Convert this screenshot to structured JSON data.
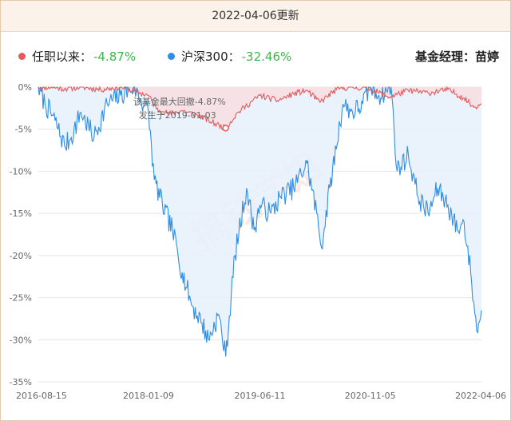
{
  "header": {
    "title": "2022-04-06更新"
  },
  "legend": {
    "fund_label": "任职以来：",
    "fund_value": "-4.87%",
    "index_label": "沪深300：",
    "index_value": "-32.46%",
    "manager": "基金经理：苗婷"
  },
  "annotation": {
    "line1": "该基金最大回撤-4.87%",
    "line2": "发生于2019-01-03"
  },
  "watermark": "搞钱学姐",
  "colors": {
    "fund": "#e8595c",
    "index": "#2f8ee3",
    "value_green": "#3fb64b",
    "header_bg": "#fbf2e9",
    "border": "#e6c8ad"
  },
  "chart_data": {
    "type": "area",
    "title": "",
    "xlabel": "",
    "ylabel": "",
    "ylim": [
      -35,
      0
    ],
    "y_ticks": [
      "0%",
      "-5%",
      "-10%",
      "-15%",
      "-20%",
      "-25%",
      "-30%",
      "-35%"
    ],
    "x_ticks": [
      "2016-08-15",
      "2018-01-09",
      "2019-06-11",
      "2020-11-05",
      "2022-04-06"
    ],
    "x_range": [
      "2016-08-15",
      "2022-04-06"
    ],
    "grid": true,
    "series": [
      {
        "name": "任职以来",
        "x": [
          "2016-08-15",
          "2016-10-15",
          "2016-12-15",
          "2017-03-01",
          "2017-06-01",
          "2017-09-01",
          "2017-11-15",
          "2018-01-09",
          "2018-02-15",
          "2018-04-15",
          "2018-06-15",
          "2018-09-01",
          "2018-11-01",
          "2019-01-03",
          "2019-03-01",
          "2019-06-11",
          "2019-09-01",
          "2019-11-15",
          "2020-01-15",
          "2020-03-15",
          "2020-06-01",
          "2020-08-01",
          "2020-11-05",
          "2021-02-01",
          "2021-05-01",
          "2021-08-01",
          "2021-11-01",
          "2022-01-15",
          "2022-03-01",
          "2022-04-06"
        ],
        "values": [
          0,
          0,
          -0.2,
          0,
          -0.3,
          0,
          -0.6,
          -1.0,
          -2.6,
          -3.2,
          -2.8,
          -3.4,
          -4.2,
          -4.87,
          -3.0,
          -1.0,
          -1.6,
          -0.8,
          -0.4,
          -1.8,
          -0.3,
          0,
          -0.2,
          -1.2,
          -0.4,
          -0.7,
          -0.3,
          -1.3,
          -2.4,
          -2.0
        ]
      },
      {
        "name": "沪深300",
        "x": [
          "2016-08-15",
          "2016-09-15",
          "2016-11-01",
          "2016-12-15",
          "2017-01-15",
          "2017-03-01",
          "2017-05-01",
          "2017-07-01",
          "2017-09-01",
          "2017-11-01",
          "2018-01-09",
          "2018-02-05",
          "2018-03-15",
          "2018-05-01",
          "2018-06-15",
          "2018-08-01",
          "2018-09-15",
          "2018-10-15",
          "2018-12-01",
          "2019-01-03",
          "2019-02-15",
          "2019-04-10",
          "2019-05-15",
          "2019-06-11",
          "2019-08-01",
          "2019-09-15",
          "2019-11-15",
          "2020-01-15",
          "2020-03-01",
          "2020-03-23",
          "2020-05-01",
          "2020-07-01",
          "2020-08-15",
          "2020-10-01",
          "2020-11-05",
          "2020-12-15",
          "2021-02-10",
          "2021-03-10",
          "2021-05-01",
          "2021-06-15",
          "2021-08-01",
          "2021-09-15",
          "2021-11-01",
          "2021-12-15",
          "2022-01-15",
          "2022-02-15",
          "2022-03-15",
          "2022-04-06"
        ],
        "values": [
          0,
          -2,
          -4,
          -7,
          -6,
          -3,
          -6,
          -2,
          -1,
          0,
          -3,
          -11,
          -14,
          -17,
          -22,
          -26,
          -28,
          -30,
          -27,
          -32,
          -20,
          -12,
          -17,
          -14,
          -15,
          -13,
          -12,
          -9,
          -15,
          -19,
          -12,
          -2,
          -3,
          -2,
          0,
          -1,
          0,
          -10,
          -8,
          -13,
          -15,
          -12,
          -14,
          -17,
          -16,
          -22,
          -29,
          -26.5
        ]
      }
    ]
  }
}
